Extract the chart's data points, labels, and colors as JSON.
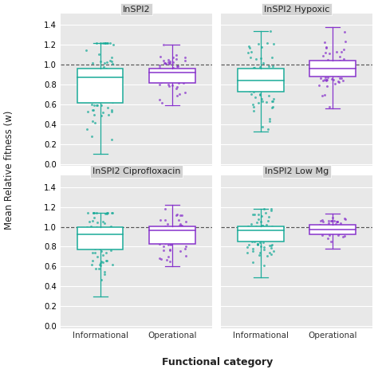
{
  "panels": [
    "InSPI2",
    "InSPI2 Hypoxic",
    "InSPI2 Ciprofloxacin",
    "InSPI2 Low Mg"
  ],
  "categories": [
    "Informational",
    "Operational"
  ],
  "colors": {
    "Informational": "#1aab99",
    "Operational": "#8833cc"
  },
  "figure_bg": "#ffffff",
  "panel_bg": "#e8e8e8",
  "strip_bg": "#d3d3d3",
  "ylabel": "Mean Relative fitness (w)",
  "xlabel": "Functional category",
  "ylim": [
    -0.02,
    1.52
  ],
  "yticks": [
    0.0,
    0.2,
    0.4,
    0.6,
    0.8,
    1.0,
    1.2,
    1.4
  ],
  "hline_y": 1.0,
  "box_stats": {
    "InSPI2": {
      "Informational": {
        "q1": 0.62,
        "median": 0.875,
        "q3": 0.965,
        "whislo": 0.1,
        "whishi": 1.22
      },
      "Operational": {
        "q1": 0.82,
        "median": 0.92,
        "q3": 0.965,
        "whislo": 0.595,
        "whishi": 1.2
      }
    },
    "InSPI2 Hypoxic": {
      "Informational": {
        "q1": 0.73,
        "median": 0.845,
        "q3": 0.96,
        "whislo": 0.33,
        "whishi": 1.34
      },
      "Operational": {
        "q1": 0.885,
        "median": 0.96,
        "q3": 1.045,
        "whislo": 0.56,
        "whishi": 1.38
      }
    },
    "InSPI2 Ciprofloxacin": {
      "Informational": {
        "q1": 0.77,
        "median": 0.925,
        "q3": 1.0,
        "whislo": 0.3,
        "whishi": 1.14
      },
      "Operational": {
        "q1": 0.83,
        "median": 0.965,
        "q3": 1.005,
        "whislo": 0.6,
        "whishi": 1.22
      }
    },
    "InSPI2 Low Mg": {
      "Informational": {
        "q1": 0.855,
        "median": 0.965,
        "q3": 1.005,
        "whislo": 0.49,
        "whishi": 1.18
      },
      "Operational": {
        "q1": 0.925,
        "median": 0.975,
        "q3": 1.02,
        "whislo": 0.78,
        "whishi": 1.13
      }
    }
  },
  "jitter_params": {
    "InSPI2": {
      "Informational": {
        "n": 85,
        "mean": 0.78,
        "std": 0.25,
        "low": 0.1,
        "high": 1.22,
        "seed": 101
      },
      "Operational": {
        "n": 58,
        "mean": 0.905,
        "std": 0.115,
        "low": 0.58,
        "high": 1.2,
        "seed": 102
      }
    },
    "InSPI2 Hypoxic": {
      "Informational": {
        "n": 68,
        "mean": 0.84,
        "std": 0.22,
        "low": 0.33,
        "high": 1.34,
        "seed": 103
      },
      "Operational": {
        "n": 52,
        "mean": 0.96,
        "std": 0.17,
        "low": 0.56,
        "high": 1.38,
        "seed": 104
      }
    },
    "InSPI2 Ciprofloxacin": {
      "Informational": {
        "n": 72,
        "mean": 0.885,
        "std": 0.175,
        "low": 0.3,
        "high": 1.14,
        "seed": 105
      },
      "Operational": {
        "n": 68,
        "mean": 0.935,
        "std": 0.115,
        "low": 0.6,
        "high": 1.22,
        "seed": 106
      }
    },
    "InSPI2 Low Mg": {
      "Informational": {
        "n": 78,
        "mean": 0.935,
        "std": 0.135,
        "low": 0.49,
        "high": 1.18,
        "seed": 107
      },
      "Operational": {
        "n": 48,
        "mean": 0.975,
        "std": 0.065,
        "low": 0.78,
        "high": 1.13,
        "seed": 108
      }
    }
  }
}
